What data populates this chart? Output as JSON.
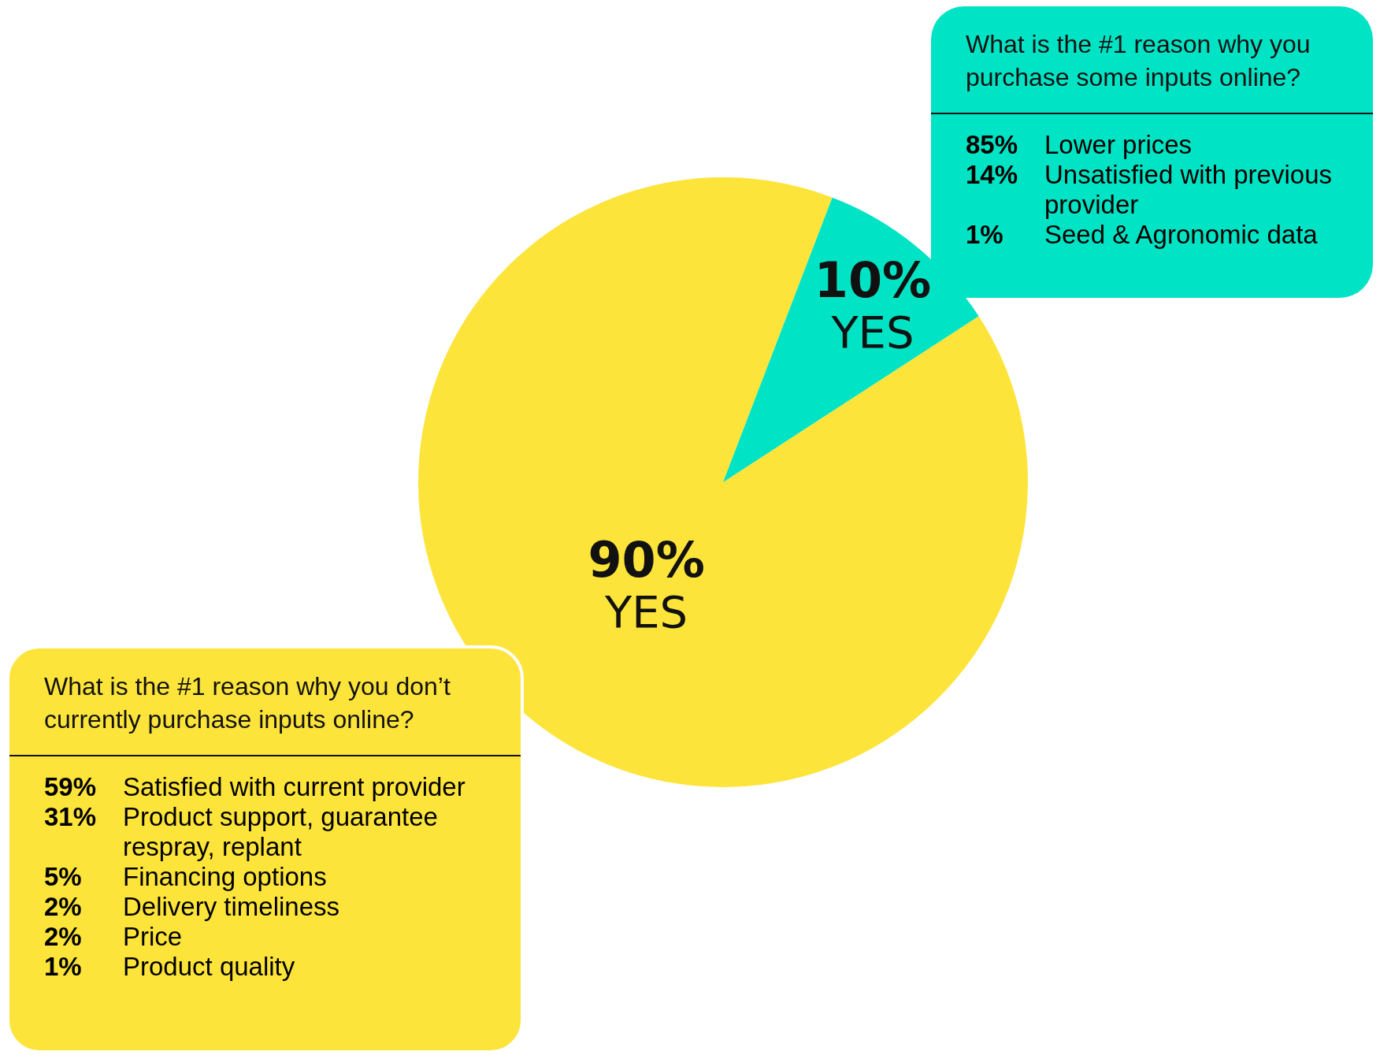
{
  "chart_data": [
    {
      "type": "pie",
      "categories": [
        "YES",
        "YES"
      ],
      "values": [
        90,
        10
      ],
      "value_labels": [
        "90%",
        "10%"
      ],
      "colors": [
        "#fde43a",
        "#00e3c4"
      ],
      "legend": false
    },
    {
      "type": "other",
      "title": "What is the #1 reason why you purchase some inputs online?",
      "categories": [
        "Lower prices",
        "Unsatisfied with previous provider",
        "Seed & Agronomic data"
      ],
      "value_labels": [
        "85%",
        "14%",
        "1%"
      ],
      "color": "#00e3c4"
    },
    {
      "type": "other",
      "title": "What is the #1 reason why you don’t currently purchase inputs online?",
      "categories": [
        "Satisfied with current provider",
        "Product support, guarantee respray, replant",
        "Financing options",
        "Delivery timeliness",
        "Price",
        "Product quality"
      ],
      "value_labels": [
        "59%",
        "31%",
        "5%",
        "2%",
        "2%",
        "1%"
      ],
      "color": "#fde43a"
    }
  ]
}
